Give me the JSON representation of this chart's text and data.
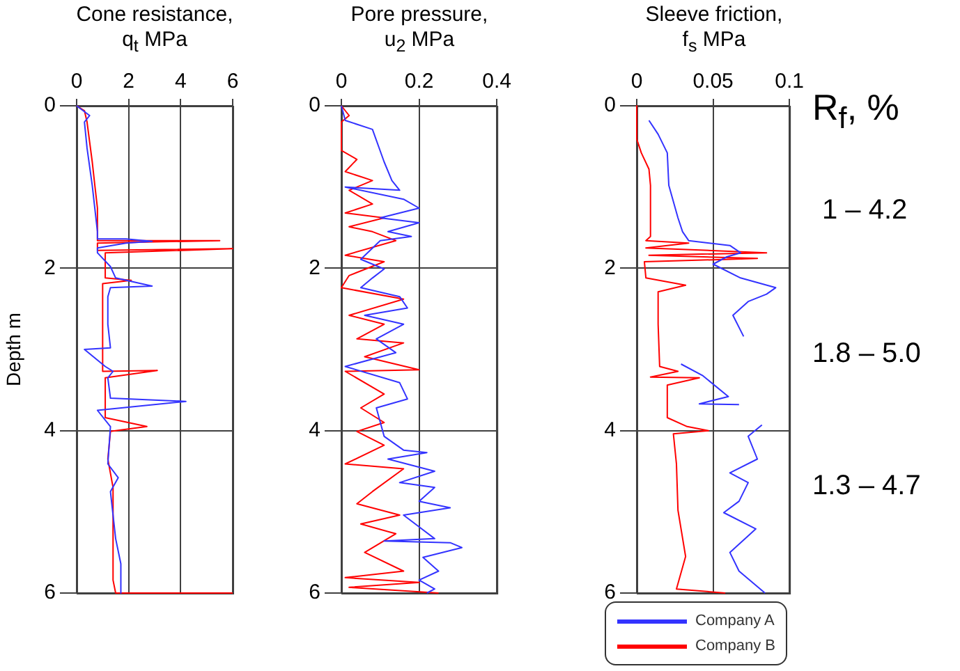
{
  "chart_data": [
    {
      "type": "line",
      "title": "Cone  resistance,\nq$_{t}$ MPa",
      "ylabel": "Depth m",
      "xlim": [
        0,
        6
      ],
      "xticks": [
        0,
        2,
        4,
        6
      ],
      "ylim": [
        6,
        0
      ],
      "yticks": [
        0,
        2,
        4,
        6
      ],
      "grid": true,
      "legend": false,
      "series": [
        {
          "color": "#3333ff",
          "x": [
            0,
            0.5,
            0.3,
            0.4,
            0.6,
            0.8,
            0.8,
            1.9,
            2.9,
            1.9,
            0.8,
            0.8,
            1.3,
            1.5,
            2.9,
            1.3,
            1.2,
            1.2,
            1.3,
            0.3,
            1.1,
            1.4,
            1.2,
            1.3,
            4.2,
            0.8,
            1.3,
            1.2,
            1.6,
            1.3,
            1.5,
            1.7,
            1.7
          ],
          "values": [
            0,
            0.12,
            0.2,
            0.52,
            0.98,
            1.55,
            1.64,
            1.64,
            1.67,
            1.69,
            1.75,
            1.81,
            1.98,
            2.12,
            2.22,
            2.24,
            2.35,
            2.69,
            2.98,
            3.0,
            3.21,
            3.27,
            3.35,
            3.6,
            3.64,
            3.75,
            3.95,
            4.41,
            4.58,
            4.75,
            5.33,
            5.64,
            6.0
          ]
        },
        {
          "color": "#ff0000",
          "x": [
            0,
            0.3,
            0.4,
            0.6,
            0.7,
            0.8,
            0.8,
            0.8,
            5.5,
            0.8,
            0.8,
            6,
            1.1,
            1.1,
            2.1,
            1.0,
            1.0,
            3.1,
            1.1,
            1.1,
            2.7,
            1.3,
            1.2,
            1.4,
            1.4,
            1.5,
            6
          ],
          "values": [
            0,
            0.06,
            0.2,
            0.69,
            0.98,
            1.26,
            1.64,
            1.66,
            1.66,
            1.69,
            1.78,
            1.76,
            1.81,
            2.12,
            2.15,
            2.19,
            3.27,
            3.26,
            3.35,
            3.84,
            3.95,
            4.01,
            4.35,
            4.7,
            5.84,
            6.0,
            6.0
          ]
        }
      ]
    },
    {
      "type": "line",
      "title": "Pore  pressure,\nu$_{2}$ MPa",
      "xlim": [
        0,
        0.4
      ],
      "xticks": [
        0,
        0.2,
        0.4
      ],
      "ylim": [
        6,
        0
      ],
      "yticks": [
        0,
        2,
        4,
        6
      ],
      "grid": true,
      "legend": false,
      "series": [
        {
          "color": "#3333ff",
          "x": [
            0,
            0.01,
            0.08,
            0.11,
            0.13,
            0.15,
            0.01,
            0.16,
            0.2,
            0.1,
            0.2,
            0.12,
            0.18,
            0.1,
            0.05,
            0.11,
            0.08,
            0.05,
            0.15,
            0.17,
            0.06,
            0.16,
            0.09,
            0.14,
            0.01,
            0.15,
            0.17,
            0.09,
            0.11,
            0.16,
            0.22,
            0.12,
            0.24,
            0.15,
            0.24,
            0.2,
            0.28,
            0.16,
            0.24,
            0.11,
            0.28,
            0.31,
            0.21,
            0.25,
            0.2,
            0.24,
            0.22
          ],
          "values": [
            0,
            0.18,
            0.29,
            0.69,
            0.92,
            1.04,
            1.0,
            1.15,
            1.26,
            1.38,
            1.44,
            1.55,
            1.61,
            1.66,
            1.89,
            2.01,
            2.12,
            2.24,
            2.35,
            2.49,
            2.58,
            2.69,
            2.87,
            3.04,
            3.21,
            3.41,
            3.61,
            3.72,
            4.07,
            4.24,
            4.27,
            4.35,
            4.5,
            4.64,
            4.7,
            4.87,
            4.95,
            5.04,
            5.33,
            5.36,
            5.38,
            5.44,
            5.56,
            5.73,
            5.84,
            5.95,
            6.0
          ]
        },
        {
          "color": "#ff0000",
          "x": [
            0,
            0.02,
            0,
            0,
            0.04,
            0.01,
            0.08,
            0.02,
            0.08,
            0.01,
            0.11,
            0.02,
            0.08,
            0.14,
            0.01,
            0.11,
            0.02,
            0,
            0.16,
            0.02,
            0.11,
            0.04,
            0.16,
            0.06,
            0.2,
            0.01,
            0.11,
            0.05,
            0.11,
            0.04,
            0.11,
            0.01,
            0.16,
            0.08,
            0.04,
            0.15,
            0.05,
            0.14,
            0.06,
            0.16,
            0.01,
            0.2,
            0.02,
            0.25
          ],
          "values": [
            0,
            0.12,
            0.2,
            0.55,
            0.66,
            0.81,
            0.92,
            1.04,
            1.21,
            1.32,
            1.38,
            1.49,
            1.55,
            1.66,
            1.84,
            1.92,
            2.09,
            2.24,
            2.38,
            2.58,
            2.69,
            2.87,
            2.92,
            3.09,
            3.25,
            3.27,
            3.55,
            3.72,
            3.9,
            4.01,
            4.18,
            4.41,
            4.47,
            4.75,
            4.9,
            5.04,
            5.15,
            5.27,
            5.5,
            5.73,
            5.81,
            5.87,
            5.93,
            6.0
          ]
        }
      ]
    },
    {
      "type": "line",
      "title": "Sleeve friction,\nf$_{s}$ MPa",
      "xlim": [
        0,
        0.1
      ],
      "xticks": [
        0,
        0.05,
        0.1
      ],
      "ylim": [
        6,
        0
      ],
      "yticks": [
        0,
        2,
        4,
        6
      ],
      "grid": true,
      "legend": "bottom",
      "annotations": [
        "R$_{f}$, %",
        "1 – 4.2",
        "1.8 – 5.0",
        "1.3 – 4.7"
      ],
      "series": [
        {
          "name": "Company A",
          "color": "#3333ff",
          "x": [
            0.008,
            0.014,
            0.02,
            0.021,
            0.027,
            0.03,
            0.034,
            0.061,
            0.068,
            0.059,
            0.05,
            0.068,
            0.091,
            0.085,
            0.073,
            0.063,
            0.07,
            null,
            0.029,
            0.043,
            0.06,
            0.041,
            0.067,
            null,
            0.082,
            0.073,
            0.079,
            0.061,
            0.073,
            0.067,
            0.057,
            0.078,
            0.061,
            0.067,
            0.084
          ],
          "values": [
            0.18,
            0.35,
            0.58,
            0.98,
            1.38,
            1.55,
            1.66,
            1.72,
            1.81,
            1.86,
            1.95,
            2.12,
            2.24,
            2.32,
            2.41,
            2.58,
            2.84,
            null,
            3.18,
            3.32,
            3.58,
            3.67,
            3.68,
            null,
            3.93,
            4.07,
            4.35,
            4.52,
            4.64,
            4.87,
            5.01,
            5.21,
            5.5,
            5.73,
            6.0
          ]
        },
        {
          "name": "Company B",
          "color": "#ff0000",
          "x": [
            0,
            0,
            0.003,
            0.008,
            0.009,
            0.009,
            0.006,
            0.034,
            0.006,
            0.085,
            0.008,
            0.079,
            0.005,
            0.006,
            0.032,
            0.014,
            0.014,
            0.015,
            0.027,
            0.009,
            0.041,
            0.02,
            0.02,
            0.033,
            0.047,
            0.024,
            0.026,
            0.027,
            0.032,
            0.026,
            0.058
          ],
          "values": [
            0,
            0.41,
            0.58,
            0.78,
            0.98,
            1.61,
            1.66,
            1.69,
            1.75,
            1.81,
            1.84,
            1.88,
            1.92,
            2.12,
            2.21,
            2.29,
            2.69,
            3.21,
            3.27,
            3.34,
            3.35,
            3.44,
            3.84,
            3.95,
            4.0,
            4.04,
            4.41,
            4.98,
            5.55,
            5.95,
            6.0
          ]
        }
      ]
    }
  ]
}
